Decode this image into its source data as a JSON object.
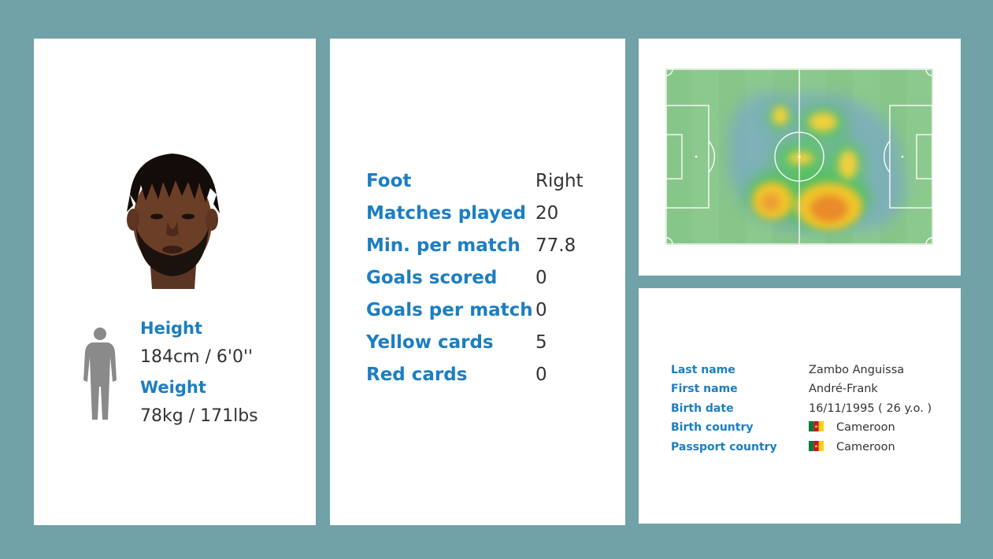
{
  "profile": {
    "height_label": "Height",
    "height_value": "184cm / 6'0''",
    "weight_label": "Weight",
    "weight_value": "78kg / 171lbs"
  },
  "stats": [
    {
      "label": "Foot",
      "value": "Right"
    },
    {
      "label": "Matches played",
      "value": "20"
    },
    {
      "label": "Min. per match",
      "value": "77.8"
    },
    {
      "label": "Goals scored",
      "value": "0"
    },
    {
      "label": "Goals per match",
      "value": "0"
    },
    {
      "label": "Yellow cards",
      "value": "5"
    },
    {
      "label": "Red cards",
      "value": "0"
    }
  ],
  "bio": {
    "last_name_label": "Last name",
    "last_name": "Zambo Anguissa",
    "first_name_label": "First name",
    "first_name": "André-Frank",
    "birth_date_label": "Birth date",
    "birth_date": "16/11/1995 ( 26 y.o. )",
    "birth_country_label": "Birth country",
    "birth_country": "Cameroon",
    "passport_country_label": "Passport country",
    "passport_country": "Cameroon"
  },
  "colors": {
    "background": "#70a2a8",
    "accent": "#1b7ec2",
    "value_text": "#333333",
    "flag_green": "#007a3d",
    "flag_red": "#ce1126",
    "flag_yellow": "#fcd116"
  },
  "icons": {
    "portrait": "player-portrait",
    "silhouette": "body-silhouette-icon",
    "flag": "cameroon-flag-icon"
  }
}
